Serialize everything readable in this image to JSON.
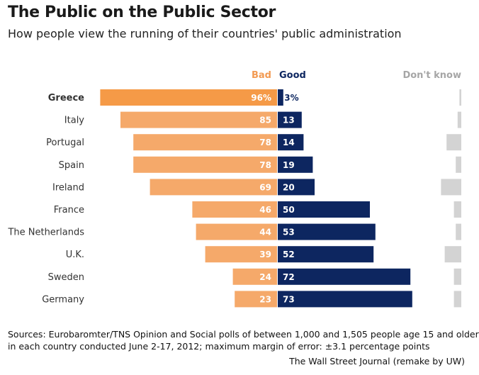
{
  "title": "The Public on the Public Sector",
  "subtitle": "How people view the running of their countries' public administration",
  "legend": {
    "bad": "Bad",
    "good": "Good",
    "dont_know": "Don't know"
  },
  "colors": {
    "bad": "#f5a96a",
    "bad_highlight": "#f59a47",
    "good": "#0d2660",
    "dont_know": "#d3d3d3",
    "legend_bad": "#f29a52",
    "legend_good": "#0d2660",
    "legend_dk": "#a6a6a6"
  },
  "footer": {
    "sources_line1": "Sources: Eurobaromter/TNS Opinion and Social polls of between 1,000 and 1,505 people age 15 and older",
    "sources_line2": "in each country conducted June 2-17, 2012;  maximum margin of error: ±3.1  percentage points",
    "credit": "The Wall Street Journal (remake by UW)"
  },
  "chart_data": {
    "type": "bar",
    "categories": [
      "Greece",
      "Italy",
      "Portugal",
      "Spain",
      "Ireland",
      "France",
      "The Netherlands",
      "U.K.",
      "Sweden",
      "Germany"
    ],
    "highlight": "Greece",
    "series": [
      {
        "name": "Bad",
        "values": [
          96,
          85,
          78,
          78,
          69,
          46,
          44,
          39,
          24,
          23
        ],
        "labels": [
          "96%",
          "85",
          "78",
          "78",
          "69",
          "46",
          "44",
          "39",
          "24",
          "23"
        ]
      },
      {
        "name": "Good",
        "values": [
          3,
          13,
          14,
          19,
          20,
          50,
          53,
          52,
          72,
          73
        ],
        "labels": [
          "3%",
          "13",
          "14",
          "19",
          "20",
          "50",
          "53",
          "52",
          "72",
          "73"
        ]
      },
      {
        "name": "Don't know",
        "values": [
          1,
          2,
          8,
          3,
          11,
          4,
          3,
          9,
          4,
          4
        ]
      }
    ]
  }
}
